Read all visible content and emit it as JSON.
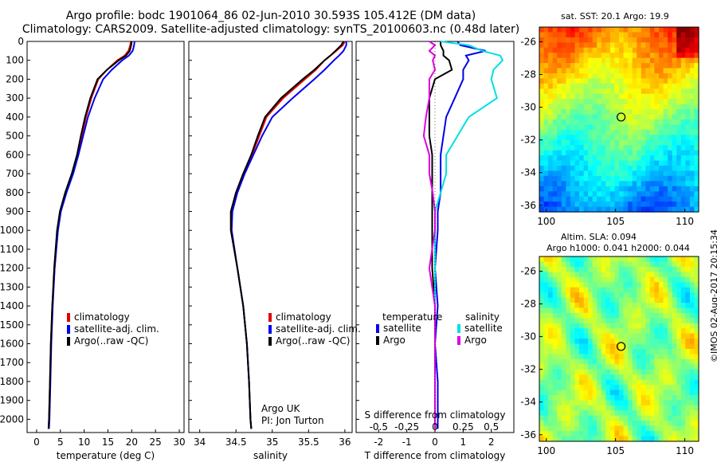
{
  "header": {
    "title_line1": "Argo profile: bodc 1901064_86 02-Jun-2010 30.593S 105.412E (DM data)",
    "title_line2": "Climatology: CARS2009. Satellite-adjusted climatology: synTS_20100603.nc (0.48d later)"
  },
  "colors": {
    "climatology": "#e00000",
    "satellite": "#0000ee",
    "argo": "#000000",
    "satellite_s": "#00e0e0",
    "argo_s": "#e000e0"
  },
  "chart_data": [
    {
      "type": "line",
      "name": "temperature-profile",
      "xlabel": "temperature (deg C)",
      "ylabel": "",
      "xlim": [
        -2,
        31
      ],
      "ylim": [
        2070,
        0
      ],
      "xticks": [
        "0",
        "5",
        "10",
        "15",
        "20",
        "25",
        "30"
      ],
      "yticks": [
        "0",
        "100",
        "200",
        "300",
        "400",
        "500",
        "600",
        "700",
        "800",
        "900",
        "1000",
        "1100",
        "1200",
        "1300",
        "1400",
        "1500",
        "1600",
        "1700",
        "1800",
        "1900",
        "2000"
      ],
      "legend": [
        "climatology",
        "satellite-adj. clim.",
        "Argo(..raw -QC)"
      ],
      "depth": [
        0,
        20,
        50,
        75,
        100,
        150,
        200,
        300,
        400,
        500,
        600,
        700,
        800,
        900,
        1000,
        1200,
        1400,
        1600,
        1800,
        2000,
        2050
      ],
      "series": [
        {
          "name": "climatology",
          "values": [
            19.8,
            19.7,
            19.3,
            18.5,
            17.0,
            14.8,
            13.0,
            11.5,
            10.4,
            9.5,
            8.6,
            7.5,
            6.1,
            5.0,
            4.4,
            3.8,
            3.3,
            3.0,
            2.8,
            2.6,
            2.5
          ]
        },
        {
          "name": "satellite-adj. clim.",
          "values": [
            20.6,
            20.5,
            20.2,
            19.4,
            18.0,
            15.8,
            14.0,
            12.2,
            10.8,
            9.8,
            8.8,
            7.7,
            6.3,
            5.1,
            4.5,
            3.8,
            3.4,
            3.1,
            2.9,
            2.7,
            2.6
          ]
        },
        {
          "name": "Argo(..raw -QC)",
          "values": [
            20.0,
            19.9,
            19.6,
            18.8,
            17.3,
            14.8,
            12.8,
            11.3,
            10.2,
            9.3,
            8.5,
            7.4,
            6.0,
            4.9,
            4.3,
            3.7,
            3.3,
            3.0,
            2.8,
            2.6,
            2.5
          ]
        }
      ]
    },
    {
      "type": "line",
      "name": "salinity-profile",
      "xlabel": "salinity",
      "ylabel": "",
      "xlim": [
        33.85,
        36.1
      ],
      "ylim": [
        2070,
        0
      ],
      "xticks": [
        "34",
        "34.5",
        "35",
        "35.5",
        "36"
      ],
      "legend": [
        "climatology",
        "satellite-adj. clim.",
        "Argo(..raw -QC)"
      ],
      "annotation": [
        "Argo UK",
        "PI: Jon Turton"
      ],
      "depth": [
        0,
        20,
        50,
        75,
        100,
        150,
        200,
        300,
        400,
        500,
        600,
        700,
        800,
        900,
        1000,
        1200,
        1400,
        1600,
        1800,
        2000,
        2050
      ],
      "series": [
        {
          "name": "climatology",
          "values": [
            36.0,
            35.97,
            35.88,
            35.8,
            35.72,
            35.6,
            35.45,
            35.15,
            34.92,
            34.82,
            34.72,
            34.6,
            34.5,
            34.43,
            34.43,
            34.52,
            34.6,
            34.65,
            34.68,
            34.7,
            34.71
          ]
        },
        {
          "name": "satellite-adj. clim.",
          "values": [
            36.02,
            36.02,
            35.98,
            35.92,
            35.85,
            35.72,
            35.58,
            35.28,
            35.0,
            34.86,
            34.74,
            34.62,
            34.52,
            34.45,
            34.44,
            34.52,
            34.6,
            34.65,
            34.68,
            34.7,
            34.71
          ]
        },
        {
          "name": "Argo(..raw -QC)",
          "values": [
            35.98,
            35.95,
            35.87,
            35.8,
            35.72,
            35.58,
            35.42,
            35.12,
            34.9,
            34.8,
            34.71,
            34.6,
            34.5,
            34.43,
            34.43,
            34.52,
            34.6,
            34.65,
            34.68,
            34.7,
            34.71
          ]
        }
      ]
    },
    {
      "type": "line",
      "name": "difference-profile",
      "xlabel": "T difference from climatology",
      "xlabel_top": "S difference from climatology",
      "xlim": [
        -2.8,
        2.8
      ],
      "ylim": [
        2070,
        0
      ],
      "xticks": [
        "-2",
        "-1",
        "0",
        "1",
        "2"
      ],
      "xticks_top": [
        "-0.5",
        "-0.25",
        "0",
        "0.25",
        "0.5"
      ],
      "legend_heading_t": "temperature",
      "legend_heading_s": "salinity",
      "legend": [
        "satellite",
        "Argo",
        "satellite",
        "Argo"
      ],
      "depth": [
        0,
        20,
        50,
        75,
        100,
        150,
        200,
        300,
        400,
        500,
        600,
        700,
        800,
        900,
        1000,
        1200,
        1400,
        1600,
        1800,
        2000,
        2050
      ],
      "series": [
        {
          "name": "satellite",
          "quantity": "temperature",
          "values": [
            0.8,
            0.9,
            1.8,
            1.1,
            1.2,
            1.0,
            1.0,
            0.7,
            0.4,
            0.3,
            0.2,
            0.2,
            0.2,
            0.1,
            0.1,
            0.0,
            0.1,
            0.0,
            0.1,
            0.1,
            0.1
          ]
        },
        {
          "name": "Argo",
          "quantity": "temperature",
          "values": [
            0.2,
            0.2,
            0.3,
            0.3,
            0.5,
            0.6,
            0.0,
            -0.2,
            -0.2,
            -0.2,
            -0.1,
            -0.1,
            -0.1,
            -0.1,
            -0.1,
            -0.1,
            0.0,
            0.0,
            0.0,
            0.0,
            0.0
          ]
        },
        {
          "name": "satellite",
          "quantity": "salinity",
          "values": [
            0.05,
            0.3,
            0.42,
            0.58,
            0.6,
            0.52,
            0.5,
            0.55,
            0.3,
            0.2,
            0.1,
            0.1,
            0.05,
            0.0,
            0.0,
            0.0,
            0.0,
            0.0,
            0.0,
            0.0,
            0.0
          ]
        },
        {
          "name": "Argo",
          "quantity": "salinity",
          "values": [
            -0.05,
            0.0,
            -0.05,
            0.0,
            -0.02,
            0.0,
            -0.05,
            -0.05,
            -0.08,
            -0.1,
            -0.05,
            -0.05,
            -0.02,
            0.0,
            0.0,
            -0.05,
            0.0,
            0.0,
            0.0,
            0.0,
            0.0
          ]
        }
      ]
    },
    {
      "type": "heatmap",
      "name": "sst-map",
      "title": "sat. SST: 20.1 Argo: 19.9",
      "xlim": [
        99.5,
        111
      ],
      "ylim": [
        -36.4,
        -25.1
      ],
      "xticks": [
        "100",
        "105",
        "110"
      ],
      "yticks": [
        "-26",
        "-28",
        "-30",
        "-32",
        "-34",
        "-36"
      ],
      "marker": [
        105.4,
        -30.6
      ]
    },
    {
      "type": "heatmap",
      "name": "sla-map",
      "title_line1": "Altim. SLA: 0.094",
      "title_line2": "Argo h1000: 0.041 h2000: 0.044",
      "xlim": [
        99.5,
        111
      ],
      "ylim": [
        -36.4,
        -25.1
      ],
      "xticks": [
        "100",
        "105",
        "110"
      ],
      "yticks": [
        "-26",
        "-28",
        "-30",
        "-32",
        "-34",
        "-36"
      ],
      "marker": [
        105.4,
        -30.6
      ]
    }
  ],
  "footer": {
    "stamp": "©IMOS 02-Aug-2017 20:15:34"
  }
}
